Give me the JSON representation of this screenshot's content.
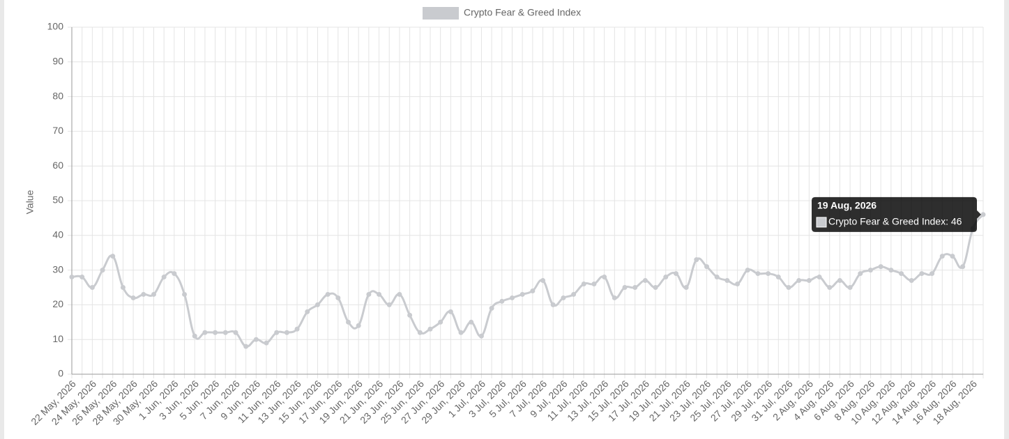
{
  "chart_data": {
    "type": "line",
    "y_label": "Value",
    "ylim": [
      0,
      100
    ],
    "yticks": [
      0,
      10,
      20,
      30,
      40,
      50,
      60,
      70,
      80,
      90,
      100
    ],
    "grid": true,
    "legend": "top",
    "categories": [
      "22 May, 2026",
      null,
      "24 May, 2026",
      null,
      "26 May, 2026",
      null,
      "28 May, 2026",
      null,
      "30 May, 2026",
      null,
      "1 Jun, 2026",
      null,
      "3 Jun, 2026",
      null,
      "5 Jun, 2026",
      null,
      "7 Jun, 2026",
      null,
      "9 Jun, 2026",
      null,
      "11 Jun, 2026",
      null,
      "13 Jun, 2026",
      null,
      "15 Jun, 2026",
      null,
      "17 Jun, 2026",
      null,
      "19 Jun, 2026",
      null,
      "21 Jun, 2026",
      null,
      "23 Jun, 2026",
      null,
      "25 Jun, 2026",
      null,
      "27 Jun, 2026",
      null,
      "29 Jun, 2026",
      null,
      "1 Jul, 2026",
      null,
      "3 Jul, 2026",
      null,
      "5 Jul, 2026",
      null,
      "7 Jul, 2026",
      null,
      "9 Jul, 2026",
      null,
      "11 Jul, 2026",
      null,
      "13 Jul, 2026",
      null,
      "15 Jul, 2026",
      null,
      "17 Jul, 2026",
      null,
      "19 Jul, 2026",
      null,
      "21 Jul, 2026",
      null,
      "23 Jul, 2026",
      null,
      "25 Jul, 2026",
      null,
      "27 Jul, 2026",
      null,
      "29 Jul, 2026",
      null,
      "31 Jul, 2026",
      null,
      "2 Aug, 2026",
      null,
      "4 Aug, 2026",
      null,
      "6 Aug, 2026",
      null,
      "8 Aug, 2026",
      null,
      "10 Aug, 2026",
      null,
      "12 Aug, 2026",
      null,
      "14 Aug, 2026",
      null,
      "16 Aug, 2026",
      null,
      "18 Aug, 2026",
      null
    ],
    "series": [
      {
        "name": "Crypto Fear & Greed Index",
        "color": "#c9cbcf",
        "values": [
          28,
          28,
          25,
          30,
          34,
          25,
          22,
          23,
          23,
          28,
          29,
          23,
          11,
          12,
          12,
          12,
          12,
          8,
          10,
          9,
          12,
          12,
          13,
          18,
          20,
          23,
          22,
          15,
          14,
          23,
          23,
          20,
          23,
          17,
          12,
          13,
          15,
          18,
          12,
          15,
          11,
          19,
          21,
          22,
          23,
          24,
          27,
          20,
          22,
          23,
          26,
          26,
          28,
          22,
          25,
          25,
          27,
          25,
          28,
          29,
          25,
          33,
          31,
          28,
          27,
          26,
          30,
          29,
          29,
          28,
          25,
          27,
          27,
          28,
          25,
          27,
          25,
          29,
          30,
          31,
          30,
          29,
          27,
          29,
          29,
          34,
          34,
          31,
          42,
          46
        ]
      }
    ],
    "tooltip": {
      "title": "19 Aug, 2026",
      "text": "Crypto Fear & Greed Index: 46"
    }
  }
}
